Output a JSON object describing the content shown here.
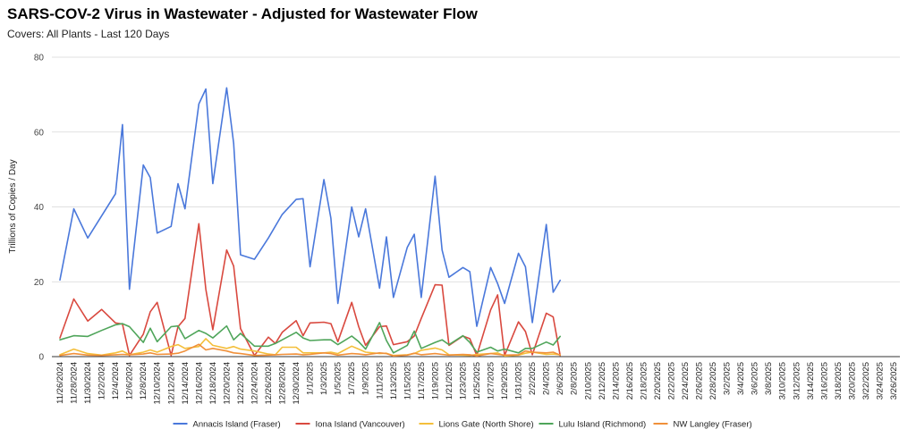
{
  "title": "SARS-COV-2 Virus in Wastewater - Adjusted for Wastewater Flow",
  "subtitle": "Covers: All Plants - Last 120 Days",
  "chart_data": {
    "type": "line",
    "title": "SARS-COV-2 Virus in Wastewater - Adjusted for Wastewater Flow",
    "subtitle": "Covers: All Plants - Last 120 Days",
    "ylabel": "Trillions of Copies / Day",
    "xlabel": "",
    "ylim": [
      0,
      80
    ],
    "yticks": [
      0,
      20,
      40,
      60,
      80
    ],
    "grid": true,
    "legend_position": "bottom",
    "x": [
      "11/26/2024",
      "11/28/2024",
      "11/30/2024",
      "12/2/2024",
      "12/4/2024",
      "12/6/2024",
      "12/8/2024",
      "12/10/2024",
      "12/12/2024",
      "12/14/2024",
      "12/16/2024",
      "12/18/2024",
      "12/20/2024",
      "12/22/2024",
      "12/24/2024",
      "12/26/2024",
      "12/28/2024",
      "12/30/2024",
      "1/1/2025",
      "1/3/2025",
      "1/5/2025",
      "1/7/2025",
      "1/9/2025",
      "1/11/2025",
      "1/13/2025",
      "1/15/2025",
      "1/17/2025",
      "1/19/2025",
      "1/21/2025",
      "1/23/2025",
      "1/25/2025",
      "1/27/2025",
      "1/29/2025",
      "1/31/2025",
      "2/2/2025",
      "2/4/2025",
      "2/6/2025",
      "2/8/2025",
      "2/10/2025",
      "2/12/2025",
      "2/14/2025",
      "2/16/2025",
      "2/18/2025",
      "2/20/2025",
      "2/22/2025",
      "2/24/2025",
      "2/26/2025",
      "2/28/2025",
      "3/2/2025",
      "3/4/2025",
      "3/6/2025",
      "3/8/2025",
      "3/10/2025",
      "3/12/2025",
      "3/14/2025",
      "3/16/2025",
      "3/18/2025",
      "3/20/2025",
      "3/22/2025",
      "3/24/2025",
      "3/26/2025"
    ],
    "series": [
      {
        "name": "Annacis Island (Fraser)",
        "color": "#4a78db",
        "values": [
          [
            0,
            20.5
          ],
          [
            2,
            39.5
          ],
          [
            4,
            31.7
          ],
          [
            8,
            43.5
          ],
          [
            9,
            62
          ],
          [
            10,
            18
          ],
          [
            12,
            51.2
          ],
          [
            13,
            47.8
          ],
          [
            14,
            33
          ],
          [
            16,
            34.8
          ],
          [
            17,
            46.2
          ],
          [
            18,
            39.5
          ],
          [
            20,
            67.5
          ],
          [
            21,
            71.5
          ],
          [
            22,
            46.2
          ],
          [
            24,
            71.8
          ],
          [
            25,
            57
          ],
          [
            26,
            27.2
          ],
          [
            28,
            26
          ],
          [
            30,
            31.7
          ],
          [
            32,
            38
          ],
          [
            34,
            42
          ],
          [
            35,
            42.2
          ],
          [
            36,
            24
          ],
          [
            38,
            47.3
          ],
          [
            39,
            37
          ],
          [
            40,
            14.2
          ],
          [
            42,
            40
          ],
          [
            43,
            32
          ],
          [
            44,
            39.5
          ],
          [
            46,
            18.3
          ],
          [
            47,
            32
          ],
          [
            48,
            15.8
          ],
          [
            50,
            29.2
          ],
          [
            51,
            32.7
          ],
          [
            52,
            15.8
          ],
          [
            54,
            48.2
          ],
          [
            55,
            28.5
          ],
          [
            56,
            21.2
          ],
          [
            58,
            23.8
          ],
          [
            59,
            22.7
          ],
          [
            60,
            8.1
          ],
          [
            62,
            23.8
          ],
          [
            63,
            19.5
          ],
          [
            64,
            14.2
          ],
          [
            66,
            27.6
          ],
          [
            67,
            24
          ],
          [
            68,
            9.1
          ],
          [
            70,
            35.3
          ],
          [
            71,
            17.2
          ],
          [
            72,
            20.4
          ]
        ]
      },
      {
        "name": "Iona Island (Vancouver)",
        "color": "#d9493f",
        "values": [
          [
            0,
            5
          ],
          [
            2,
            15.4
          ],
          [
            4,
            9.5
          ],
          [
            6,
            12.6
          ],
          [
            8,
            9
          ],
          [
            9,
            8.7
          ],
          [
            10,
            0.3
          ],
          [
            12,
            6
          ],
          [
            13,
            12
          ],
          [
            14,
            14.5
          ],
          [
            16,
            0.3
          ],
          [
            17,
            8
          ],
          [
            18,
            10.2
          ],
          [
            20,
            35.5
          ],
          [
            21,
            18
          ],
          [
            22,
            7.2
          ],
          [
            24,
            28.5
          ],
          [
            25,
            24.2
          ],
          [
            26,
            7.5
          ],
          [
            28,
            0.3
          ],
          [
            30,
            5.2
          ],
          [
            31,
            3.5
          ],
          [
            32,
            6.5
          ],
          [
            34,
            9.6
          ],
          [
            35,
            5.6
          ],
          [
            36,
            9
          ],
          [
            38,
            9.2
          ],
          [
            39,
            8.8
          ],
          [
            40,
            4
          ],
          [
            42,
            14.5
          ],
          [
            43,
            8
          ],
          [
            44,
            3
          ],
          [
            46,
            8
          ],
          [
            47,
            8.2
          ],
          [
            48,
            3.2
          ],
          [
            50,
            4
          ],
          [
            51,
            5.5
          ],
          [
            52,
            10.2
          ],
          [
            54,
            19.2
          ],
          [
            55,
            19.1
          ],
          [
            56,
            3
          ],
          [
            58,
            5.5
          ],
          [
            59,
            4.8
          ],
          [
            60,
            0.3
          ],
          [
            62,
            12.5
          ],
          [
            63,
            16.5
          ],
          [
            64,
            0.3
          ],
          [
            66,
            9.3
          ],
          [
            67,
            6.7
          ],
          [
            68,
            0.5
          ],
          [
            70,
            11.6
          ],
          [
            71,
            10.6
          ],
          [
            72,
            0.3
          ]
        ]
      },
      {
        "name": "Lions Gate (North Shore)",
        "color": "#f4bf3b",
        "values": [
          [
            0,
            0.5
          ],
          [
            2,
            2
          ],
          [
            4,
            0.8
          ],
          [
            6,
            0.4
          ],
          [
            8,
            1
          ],
          [
            9,
            1.5
          ],
          [
            10,
            0.5
          ],
          [
            12,
            1.2
          ],
          [
            13,
            1.8
          ],
          [
            14,
            1.2
          ],
          [
            16,
            2.7
          ],
          [
            17,
            3.2
          ],
          [
            18,
            2.2
          ],
          [
            20,
            2.7
          ],
          [
            21,
            4.8
          ],
          [
            22,
            3
          ],
          [
            24,
            2.2
          ],
          [
            25,
            2.7
          ],
          [
            26,
            2
          ],
          [
            28,
            1.5
          ],
          [
            30,
            0.7
          ],
          [
            31,
            0.5
          ],
          [
            32,
            2.5
          ],
          [
            34,
            2.5
          ],
          [
            35,
            1
          ],
          [
            36,
            1
          ],
          [
            38,
            1
          ],
          [
            39,
            1.2
          ],
          [
            40,
            0.8
          ],
          [
            42,
            2.8
          ],
          [
            43,
            2
          ],
          [
            44,
            1.2
          ],
          [
            46,
            0.8
          ],
          [
            47,
            0.9
          ],
          [
            48,
            0.3
          ],
          [
            50,
            0.5
          ],
          [
            51,
            0.8
          ],
          [
            52,
            1.7
          ],
          [
            54,
            2.3
          ],
          [
            55,
            1.8
          ],
          [
            56,
            0.5
          ],
          [
            58,
            0.4
          ],
          [
            59,
            0.3
          ],
          [
            60,
            0.6
          ],
          [
            62,
            0.8
          ],
          [
            63,
            1
          ],
          [
            64,
            0.2
          ],
          [
            66,
            0.4
          ],
          [
            67,
            0.9
          ],
          [
            68,
            1.2
          ],
          [
            70,
            0.6
          ],
          [
            71,
            0.7
          ],
          [
            72,
            0.5
          ]
        ]
      },
      {
        "name": "Lulu Island (Richmond)",
        "color": "#4fa55a",
        "values": [
          [
            0,
            4.5
          ],
          [
            2,
            5.6
          ],
          [
            4,
            5.4
          ],
          [
            6,
            7
          ],
          [
            8,
            8.5
          ],
          [
            9,
            8.8
          ],
          [
            10,
            8
          ],
          [
            12,
            3.8
          ],
          [
            13,
            7.6
          ],
          [
            14,
            4
          ],
          [
            16,
            8
          ],
          [
            17,
            8.2
          ],
          [
            18,
            4.8
          ],
          [
            20,
            7
          ],
          [
            21,
            6.2
          ],
          [
            22,
            5
          ],
          [
            24,
            8.2
          ],
          [
            25,
            4.5
          ],
          [
            26,
            6.2
          ],
          [
            28,
            2.8
          ],
          [
            30,
            2.8
          ],
          [
            31,
            3.5
          ],
          [
            32,
            4.5
          ],
          [
            34,
            6.5
          ],
          [
            35,
            5
          ],
          [
            36,
            4.3
          ],
          [
            38,
            4.5
          ],
          [
            39,
            4.5
          ],
          [
            40,
            3.2
          ],
          [
            42,
            5.5
          ],
          [
            43,
            4
          ],
          [
            44,
            2
          ],
          [
            46,
            9.1
          ],
          [
            47,
            4.3
          ],
          [
            48,
            1
          ],
          [
            50,
            3
          ],
          [
            51,
            6.8
          ],
          [
            52,
            2.2
          ],
          [
            54,
            3.8
          ],
          [
            55,
            4.5
          ],
          [
            56,
            3.2
          ],
          [
            58,
            5.6
          ],
          [
            59,
            3.8
          ],
          [
            60,
            1.2
          ],
          [
            62,
            2.5
          ],
          [
            63,
            1.5
          ],
          [
            64,
            2
          ],
          [
            66,
            1
          ],
          [
            67,
            2.2
          ],
          [
            68,
            2.2
          ],
          [
            70,
            3.9
          ],
          [
            71,
            3.1
          ],
          [
            72,
            5.4
          ]
        ]
      },
      {
        "name": "NW Langley (Fraser)",
        "color": "#f0903a",
        "values": [
          [
            0,
            0.3
          ],
          [
            2,
            0.8
          ],
          [
            4,
            0.4
          ],
          [
            6,
            0.3
          ],
          [
            8,
            0.5
          ],
          [
            9,
            0.6
          ],
          [
            10,
            0.5
          ],
          [
            12,
            0.7
          ],
          [
            13,
            1
          ],
          [
            14,
            0.6
          ],
          [
            16,
            0.7
          ],
          [
            17,
            0.9
          ],
          [
            18,
            1.5
          ],
          [
            20,
            3.3
          ],
          [
            21,
            1.8
          ],
          [
            22,
            2.2
          ],
          [
            24,
            1.5
          ],
          [
            25,
            1
          ],
          [
            26,
            0.8
          ],
          [
            28,
            0.3
          ],
          [
            30,
            0.4
          ],
          [
            31,
            0.5
          ],
          [
            32,
            0.6
          ],
          [
            34,
            0.7
          ],
          [
            35,
            0.5
          ],
          [
            36,
            0.6
          ],
          [
            38,
            1
          ],
          [
            39,
            0.8
          ],
          [
            40,
            0.4
          ],
          [
            42,
            0.8
          ],
          [
            43,
            0.7
          ],
          [
            44,
            0.5
          ],
          [
            46,
            1
          ],
          [
            47,
            0.8
          ],
          [
            48,
            0.2
          ],
          [
            50,
            0.4
          ],
          [
            51,
            0.9
          ],
          [
            52,
            0.5
          ],
          [
            54,
            0.8
          ],
          [
            55,
            0.6
          ],
          [
            56,
            0.4
          ],
          [
            58,
            0.6
          ],
          [
            59,
            0.5
          ],
          [
            60,
            0.2
          ],
          [
            62,
            0.8
          ],
          [
            63,
            0.6
          ],
          [
            64,
            0.4
          ],
          [
            66,
            0.5
          ],
          [
            67,
            1.5
          ],
          [
            68,
            1.2
          ],
          [
            70,
            1
          ],
          [
            71,
            1.2
          ],
          [
            72,
            0.4
          ]
        ]
      }
    ]
  }
}
